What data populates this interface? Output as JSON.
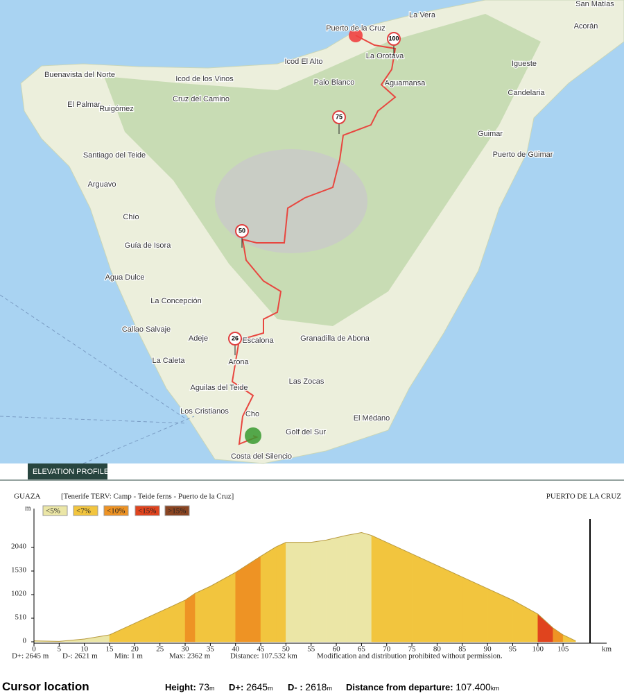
{
  "map": {
    "places": [
      "San Matías",
      "Acorán",
      "La Vera",
      "Puerto de la Cruz",
      "La Orotava",
      "Icod El Alto",
      "Igueste",
      "Buenavista del Norte",
      "Icod de los Vinos",
      "Palo Blanco",
      "Aguamansa",
      "Candelaria",
      "El Palmar",
      "Cruz del Camino",
      "Ruigómez",
      "Guimar",
      "Santiago del Teide",
      "Puerto de Güimar",
      "Arguavo",
      "Chío",
      "Guía de Isora",
      "Agua Dulce",
      "La Concepción",
      "Callao Salvaje",
      "Adeje",
      "Escalona",
      "Granadilla de Abona",
      "La Caleta",
      "Arona",
      "Las Zocas",
      "Aguilas del Teide",
      "Los Cristianos",
      "El Médano",
      "Cho",
      "Golf del Sur",
      "Costa del Silencio"
    ],
    "markers": [
      "100",
      "75",
      "50",
      "26"
    ]
  },
  "header": "ELEVATION PROFILE",
  "chart_data": {
    "type": "area",
    "start": "GUAZA",
    "subtitle": "[Tenerife TERV: Camp - Teide ferns - Puerto de la Cruz]",
    "end": "PUERTO DE LA CRUZ",
    "y_label": "m",
    "x_label": "km",
    "legend": [
      {
        "label": "<5%",
        "color": "#ebe6a6"
      },
      {
        "label": "<7%",
        "color": "#f2c53e"
      },
      {
        "label": "<10%",
        "color": "#ee9324"
      },
      {
        "label": "<15%",
        "color": "#e0441e"
      },
      {
        "label": ">15%",
        "color": "#8a4522"
      }
    ],
    "x": [
      0,
      5,
      10,
      15,
      17,
      20,
      25,
      30,
      32,
      35,
      40,
      45,
      48,
      50,
      55,
      58,
      62,
      65,
      67,
      70,
      75,
      80,
      85,
      90,
      95,
      100,
      103,
      105,
      107.5
    ],
    "values": [
      20,
      10,
      60,
      150,
      250,
      400,
      650,
      900,
      1050,
      1200,
      1500,
      1850,
      2050,
      2150,
      2150,
      2200,
      2300,
      2362,
      2300,
      2150,
      1900,
      1650,
      1400,
      1150,
      900,
      600,
      300,
      150,
      20
    ],
    "xlim": [
      0,
      112
    ],
    "ylim": [
      0,
      2550
    ],
    "xticks": [
      0,
      5,
      10,
      15,
      20,
      25,
      30,
      35,
      40,
      45,
      50,
      55,
      60,
      65,
      70,
      75,
      80,
      85,
      90,
      95,
      100,
      105
    ],
    "yticks": [
      0,
      510,
      1020,
      1530,
      2040
    ]
  },
  "stats": [
    "D+: 2645 m",
    "D-: 2621 m",
    "Min: 1 m",
    "Max: 2362 m",
    "Distance: 107.532 km",
    "Modification and distribution prohibited without permission."
  ],
  "cursor": {
    "title": "Cursor location",
    "items": [
      {
        "label": "Height:",
        "value": "73",
        "unit": "m"
      },
      {
        "label": "D+:",
        "value": "2645",
        "unit": "m"
      },
      {
        "label": "D- :",
        "value": "2618",
        "unit": "m"
      },
      {
        "label": "Distance from departure:",
        "value": "107.400",
        "unit": "km"
      }
    ]
  }
}
